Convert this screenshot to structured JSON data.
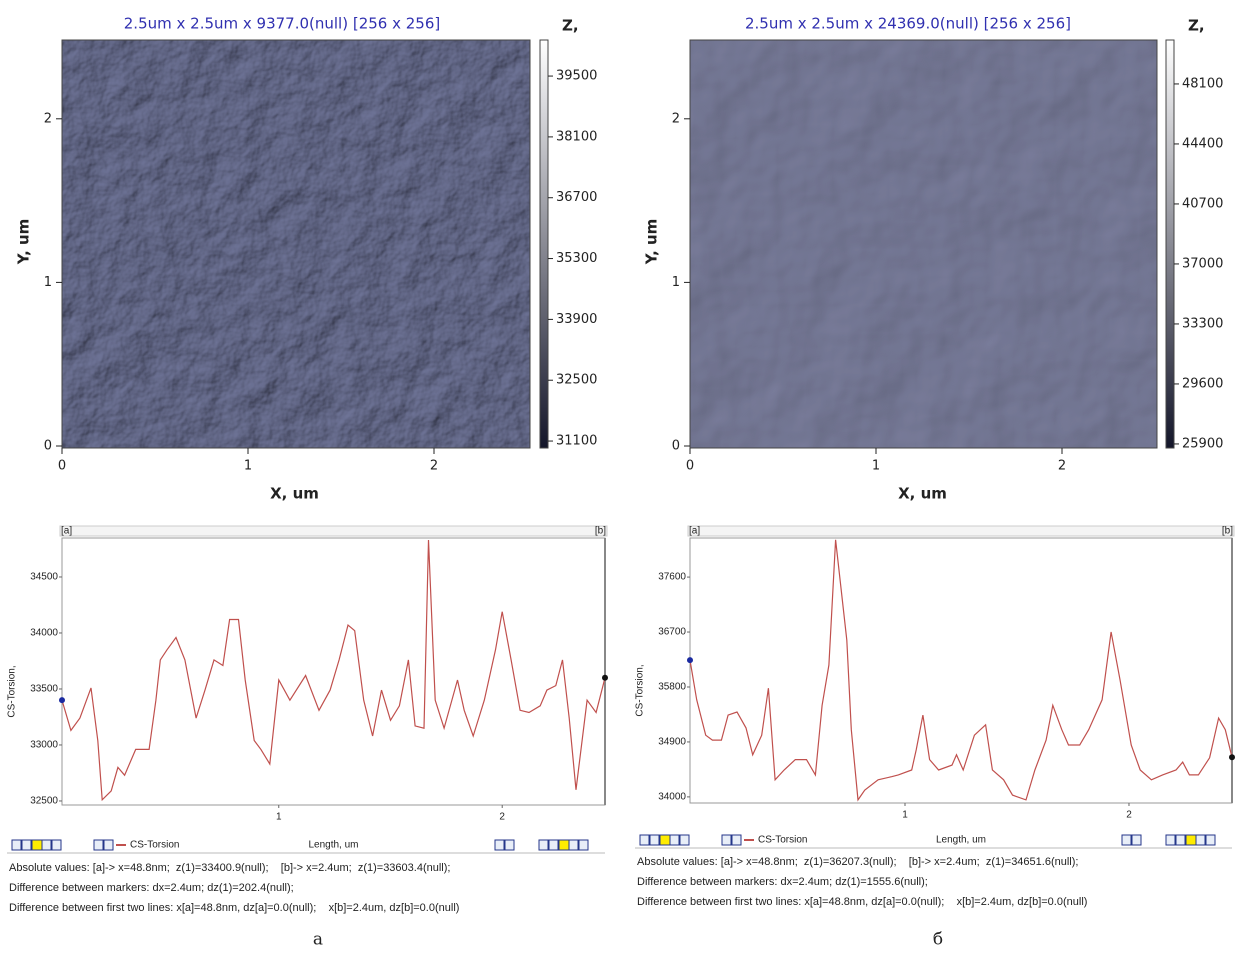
{
  "chart_data": [
    {
      "type": "image",
      "title": "2.5um x 2.5um x 9377.0(null) [256 x 256]",
      "xlabel": "X, um",
      "ylabel": "Y, um",
      "xlim": [
        0,
        2.5
      ],
      "ylim": [
        0,
        2.5
      ],
      "xticks": [
        0,
        1,
        2
      ],
      "yticks": [
        0,
        1,
        2
      ],
      "colorbar": {
        "label": "Z,",
        "lim": [
          30940,
          40330
        ],
        "ticks": [
          31100,
          32500,
          33900,
          35300,
          36700,
          38100,
          39500
        ],
        "colors": [
          "#14162a",
          "#ffffff"
        ]
      }
    },
    {
      "type": "line",
      "xlabel": "Length, um",
      "ylabel": "CS-Torsion,",
      "marker_labels": [
        "[a]",
        "[b]"
      ],
      "xlim": [
        0.03,
        2.46
      ],
      "ylim": [
        32464,
        34848
      ],
      "xticks": [
        1,
        2
      ],
      "yticks": [
        32500,
        33000,
        33500,
        34000,
        34500
      ],
      "x": [
        0.03,
        0.07,
        0.11,
        0.16,
        0.19,
        0.21,
        0.25,
        0.28,
        0.31,
        0.36,
        0.42,
        0.45,
        0.47,
        0.5,
        0.54,
        0.58,
        0.63,
        0.67,
        0.71,
        0.75,
        0.78,
        0.82,
        0.85,
        0.89,
        0.92,
        0.96,
        1.0,
        1.05,
        1.12,
        1.18,
        1.23,
        1.27,
        1.31,
        1.34,
        1.38,
        1.42,
        1.46,
        1.5,
        1.54,
        1.58,
        1.61,
        1.65,
        1.67,
        1.7,
        1.74,
        1.8,
        1.83,
        1.87,
        1.92,
        1.97,
        2.0,
        2.04,
        2.08,
        2.12,
        2.17,
        2.2,
        2.24,
        2.27,
        2.3,
        2.33,
        2.38,
        2.42,
        2.46
      ],
      "series": [
        {
          "name": "CS-Torsion",
          "color": "#c0504d",
          "values": [
            33400,
            33130,
            33240,
            33510,
            33040,
            32510,
            32590,
            32800,
            32730,
            32960,
            32960,
            33400,
            33760,
            33850,
            33960,
            33760,
            33240,
            33490,
            33760,
            33710,
            34120,
            34120,
            33580,
            33040,
            32960,
            32830,
            33580,
            33400,
            33620,
            33310,
            33490,
            33760,
            34070,
            34020,
            33400,
            33080,
            33490,
            33220,
            33350,
            33760,
            33170,
            33150,
            34830,
            33400,
            33150,
            33580,
            33310,
            33080,
            33400,
            33850,
            34190,
            33760,
            33310,
            33290,
            33350,
            33490,
            33530,
            33760,
            33240,
            32600,
            33400,
            33290,
            33600
          ]
        }
      ],
      "status_lines": [
        "Absolute values: [a]-> x=48.8nm;  z(1)=33400.9(null);    [b]-> x=2.4um;  z(1)=33603.4(null);",
        "Difference between markers: dx=2.4um; dz(1)=202.4(null);",
        "Difference between first two lines: x[a]=48.8nm, dz[a]=0.0(null);    x[b]=2.4um, dz[b]=0.0(null)"
      ],
      "caption": "а"
    },
    {
      "type": "image",
      "title": "2.5um x 2.5um x 24369.0(null) [256 x 256]",
      "xlabel": "X, um",
      "ylabel": "Y, um",
      "xlim": [
        0,
        2.5
      ],
      "ylim": [
        0,
        2.5
      ],
      "xticks": [
        0,
        1,
        2
      ],
      "yticks": [
        0,
        1,
        2
      ],
      "colorbar": {
        "label": "Z,",
        "lim": [
          25650,
          50810
        ],
        "ticks": [
          25900,
          29600,
          33300,
          37000,
          40700,
          44400,
          48100
        ],
        "colors": [
          "#14162a",
          "#ffffff"
        ]
      }
    },
    {
      "type": "line",
      "xlabel": "Length, um",
      "ylabel": "CS-Torsion,",
      "marker_labels": [
        "[a]",
        "[b]"
      ],
      "xlim": [
        0.04,
        2.46
      ],
      "ylim": [
        33900,
        38240
      ],
      "xticks": [
        1,
        2
      ],
      "yticks": [
        34000,
        34900,
        35800,
        36700,
        37600
      ],
      "x": [
        0.04,
        0.07,
        0.11,
        0.14,
        0.18,
        0.21,
        0.25,
        0.29,
        0.32,
        0.36,
        0.39,
        0.42,
        0.46,
        0.51,
        0.56,
        0.6,
        0.63,
        0.66,
        0.69,
        0.71,
        0.74,
        0.76,
        0.79,
        0.82,
        0.88,
        0.94,
        0.97,
        1.03,
        1.05,
        1.08,
        1.11,
        1.15,
        1.21,
        1.23,
        1.26,
        1.31,
        1.36,
        1.39,
        1.44,
        1.48,
        1.54,
        1.58,
        1.63,
        1.66,
        1.7,
        1.73,
        1.78,
        1.82,
        1.88,
        1.92,
        1.96,
        2.01,
        2.05,
        2.1,
        2.15,
        2.21,
        2.24,
        2.27,
        2.31,
        2.36,
        2.4,
        2.43,
        2.46
      ],
      "series": [
        {
          "name": "CS-Torsion",
          "color": "#c0504d",
          "values": [
            36240,
            35590,
            35010,
            34930,
            34930,
            35340,
            35390,
            35130,
            34690,
            35010,
            35780,
            34280,
            34440,
            34610,
            34610,
            34360,
            35500,
            36160,
            38210,
            37550,
            36570,
            35100,
            33950,
            34110,
            34280,
            34330,
            34360,
            34440,
            34770,
            35340,
            34610,
            34440,
            34520,
            34690,
            34440,
            35010,
            35180,
            34440,
            34280,
            34030,
            33950,
            34440,
            34930,
            35500,
            35100,
            34850,
            34850,
            35100,
            35590,
            36700,
            35920,
            34850,
            34440,
            34280,
            34360,
            34440,
            34570,
            34360,
            34360,
            34640,
            35290,
            35100,
            34650
          ]
        }
      ],
      "status_lines": [
        "Absolute values: [a]-> x=48.8nm;  z(1)=36207.3(null);    [b]-> x=2.4um;  z(1)=34651.6(null);",
        "Difference between markers: dx=2.4um; dz(1)=1555.6(null);",
        "Difference between first two lines: x[a]=48.8nm, dz[a]=0.0(null);    x[b]=2.4um, dz[b]=0.0(null)"
      ],
      "caption": "б"
    }
  ]
}
